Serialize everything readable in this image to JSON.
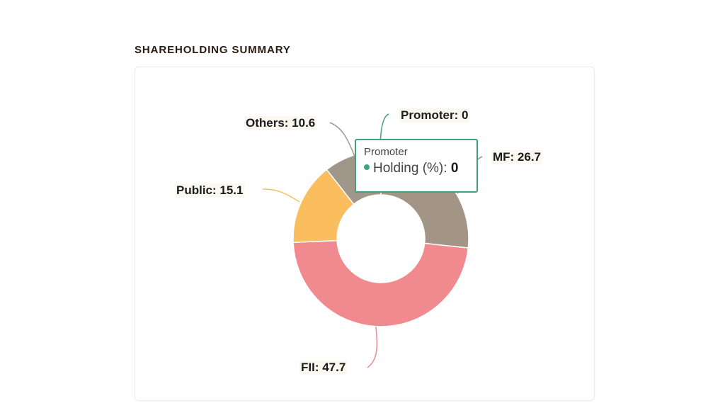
{
  "section": {
    "title": "SHAREHOLDING SUMMARY"
  },
  "chart_data": {
    "type": "pie",
    "variant": "donut",
    "series_name": "Holding (%)",
    "slices": [
      {
        "name": "Promoter",
        "label": "Promoter: 0",
        "value": 0,
        "color": "#3fa37a"
      },
      {
        "name": "MF",
        "label": "MF: 26.7",
        "value": 26.7,
        "color": "#a39585"
      },
      {
        "name": "FII",
        "label": "FII: 47.7",
        "value": 47.7,
        "color": "#f08a8f"
      },
      {
        "name": "Public",
        "label": "Public: 15.1",
        "value": 15.1,
        "color": "#fbbe5e"
      },
      {
        "name": "Others",
        "label": "Others: 10.6",
        "value": 10.6,
        "color": "#a0978b"
      }
    ],
    "tooltip": {
      "title": "Promoter",
      "series": "Holding (%)",
      "value": "0",
      "separator": ": "
    },
    "legend": "none"
  }
}
